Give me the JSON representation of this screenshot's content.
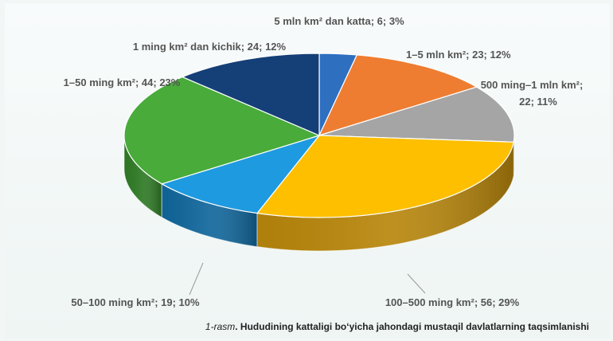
{
  "caption": {
    "figure_number": "1-rasm",
    "text": ". Hududining kattaligi bo‘yicha jahondagi mustaqil davlatlarning taqsimlanishi"
  },
  "chart_data": {
    "type": "pie",
    "title": "",
    "slices": [
      {
        "label": "5 mln km² dan katta; 6; 3%",
        "category": "5 mln km² dan katta",
        "value": 6,
        "percent": 3,
        "color": "#2e6fc0",
        "side_color": "#1d4f8c"
      },
      {
        "label": "1–5 mln km²; 23; 12%",
        "category": "1–5 mln km²",
        "value": 23,
        "percent": 12,
        "color": "#ee7d31",
        "side_color": "#b45a1e"
      },
      {
        "label": "500 ming–1 mln km²;",
        "label2": "22; 11%",
        "category": "500 ming–1 mln km²",
        "value": 22,
        "percent": 11,
        "color": "#a5a5a5",
        "side_color": "#7a7a7a"
      },
      {
        "label": "100–500 ming km²; 56; 29%",
        "category": "100–500 ming km²",
        "value": 56,
        "percent": 29,
        "color": "#fdbf00",
        "side_color": "#b8860b"
      },
      {
        "label": "50–100 ming km²; 19; 10%",
        "category": "50–100 ming km²",
        "value": 19,
        "percent": 10,
        "color": "#1e9ae0",
        "side_color": "#11679c"
      },
      {
        "label": "1–50 ming km²; 44; 23%",
        "category": "1–50 ming km²",
        "value": 44,
        "percent": 23,
        "color": "#48ab3a",
        "side_color": "#2f7a25"
      },
      {
        "label": "1 ming km² dan kichik; 24; 12%",
        "category": "1 ming km² dan kichik",
        "value": 24,
        "percent": 12,
        "color": "#153f77",
        "side_color": "#0c2748"
      }
    ]
  }
}
